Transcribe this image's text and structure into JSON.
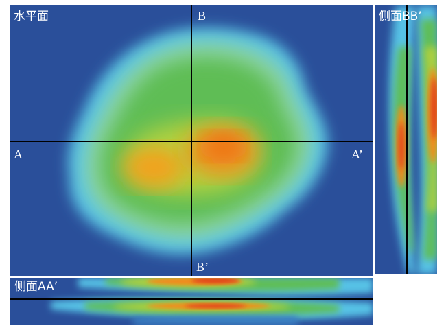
{
  "horizontal_view": {
    "title": "水平面",
    "marker_b": "B",
    "marker_b_prime": "B’",
    "marker_a": "A",
    "marker_a_prime": "A’"
  },
  "side_view_bb": {
    "title": "侧面BB’"
  },
  "side_view_aa": {
    "title": "侧面AA’"
  },
  "colors": {
    "background_blue": "#2a4f9a",
    "cyan_edge": "#5fc8e8",
    "green": "#62bf52",
    "yellow_green": "#b8d43a",
    "orange": "#f0a020",
    "red_hot": "#e0401a",
    "line": "#000000"
  }
}
